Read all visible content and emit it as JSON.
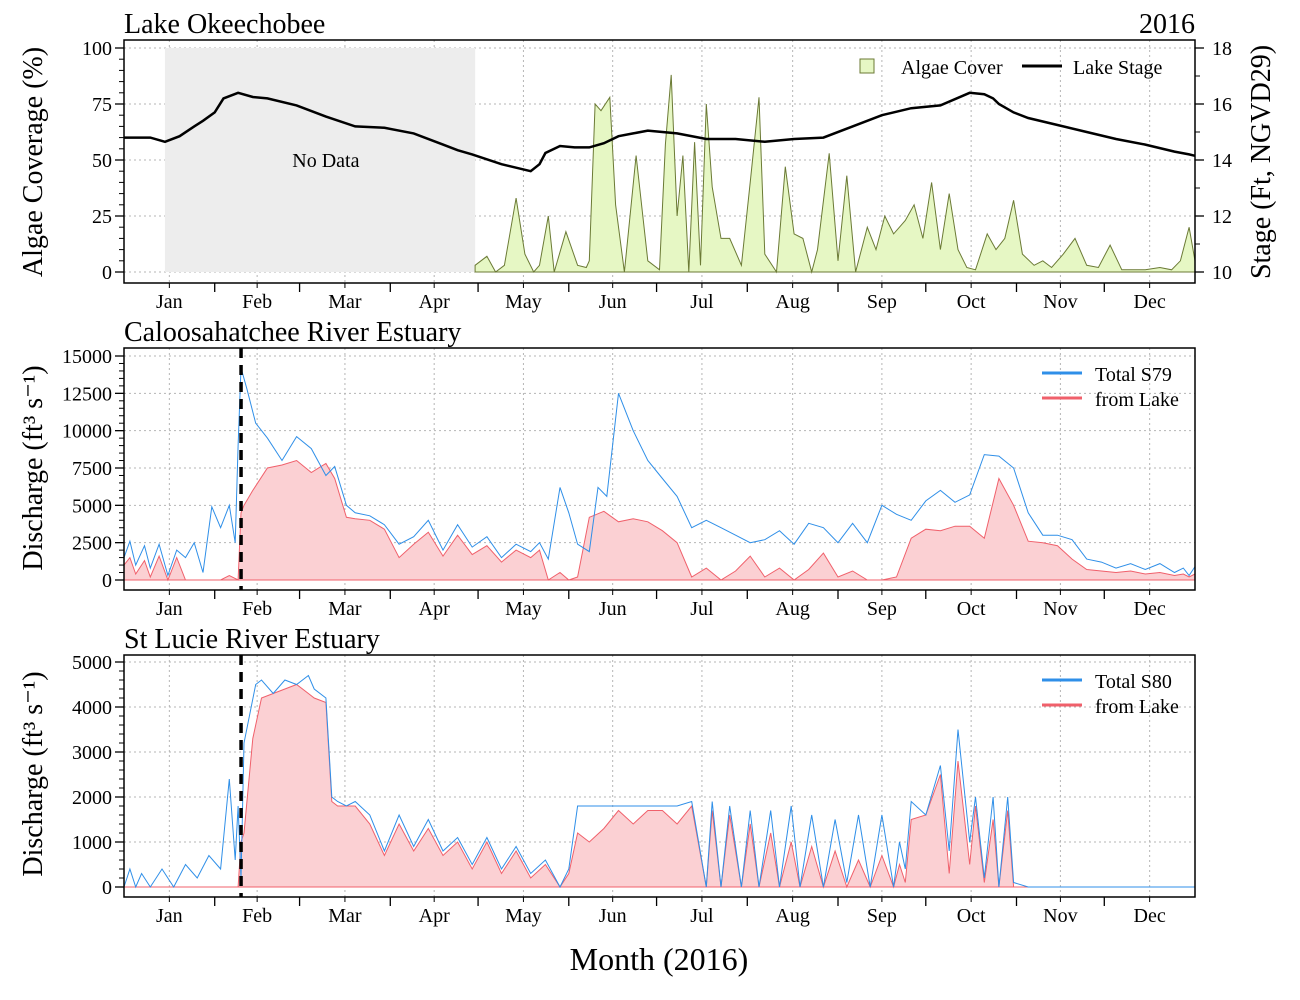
{
  "figure": {
    "xlabel": "Month (2016)",
    "months": [
      "Jan",
      "Feb",
      "Mar",
      "Apr",
      "May",
      "Jun",
      "Jul",
      "Aug",
      "Sep",
      "Oct",
      "Nov",
      "Dec"
    ]
  },
  "colors": {
    "algae_fill": "#e6f7c4",
    "algae_line": "#6b7a35",
    "stage": "#000000",
    "total": "#2f8fe8",
    "lake_line": "#f0606b",
    "lake_fill": "#fbd0d3",
    "nodata": "#ededed",
    "grid": "#b5b5b5"
  },
  "chart_data": [
    {
      "type": "area",
      "title": "Lake Okeechobee",
      "title_right": "2016",
      "ylabel": "Algae Coverage (%)",
      "y2label": "Stage (Ft, NGVD29)",
      "ylim": [
        0,
        100
      ],
      "y2lim": [
        10,
        18
      ],
      "yticks": [
        0,
        25,
        50,
        75,
        100
      ],
      "y2ticks": [
        10,
        12,
        14,
        16,
        18
      ],
      "xlim": [
        1,
        367
      ],
      "grid": true,
      "legend_position": "top-right",
      "annotation": "No Data",
      "no_data_range": [
        15,
        121
      ],
      "series": [
        {
          "name": "Algae Cover",
          "kind": "area",
          "x_day_of_year": [
            121,
            125,
            128,
            131,
            135,
            138,
            141,
            143,
            146,
            148,
            152,
            156,
            159,
            160,
            162,
            164,
            167,
            169,
            172,
            176,
            180,
            184,
            186,
            188,
            190,
            192,
            194,
            196,
            198,
            200,
            202,
            205,
            208,
            212,
            215,
            218,
            220,
            224,
            227,
            230,
            233,
            236,
            238,
            242,
            245,
            248,
            251,
            255,
            258,
            261,
            264,
            268,
            271,
            274,
            277,
            280,
            283,
            286,
            289,
            292,
            296,
            299,
            302,
            305,
            308,
            312,
            315,
            318,
            322,
            326,
            330,
            334,
            338,
            342,
            346,
            350,
            355,
            359,
            362,
            365,
            367
          ],
          "values": [
            3,
            7,
            0,
            3,
            33,
            8,
            0,
            3,
            25,
            0,
            18,
            3,
            2,
            5,
            75,
            72,
            78,
            30,
            0,
            52,
            5,
            1,
            57,
            88,
            25,
            52,
            0,
            58,
            3,
            75,
            38,
            15,
            15,
            3,
            40,
            78,
            8,
            0,
            47,
            17,
            15,
            0,
            10,
            53,
            5,
            43,
            0,
            20,
            10,
            25,
            17,
            23,
            30,
            15,
            40,
            10,
            35,
            10,
            2,
            1,
            17,
            10,
            15,
            32,
            8,
            3,
            5,
            2,
            8,
            15,
            3,
            2,
            12,
            1,
            1,
            1,
            2,
            1,
            5,
            20,
            5
          ]
        },
        {
          "name": "Lake Stage",
          "kind": "line",
          "x_day_of_year": [
            1,
            10,
            15,
            20,
            25,
            28,
            32,
            35,
            40,
            45,
            50,
            60,
            70,
            80,
            90,
            100,
            110,
            115,
            120,
            130,
            140,
            143,
            145,
            150,
            155,
            160,
            165,
            170,
            175,
            180,
            185,
            190,
            200,
            210,
            220,
            230,
            240,
            250,
            260,
            270,
            280,
            290,
            295,
            298,
            300,
            305,
            310,
            320,
            330,
            340,
            350,
            360,
            365,
            367
          ],
          "values": [
            14.8,
            14.8,
            14.65,
            14.85,
            15.2,
            15.4,
            15.7,
            16.2,
            16.4,
            16.25,
            16.2,
            15.95,
            15.55,
            15.2,
            15.15,
            14.95,
            14.55,
            14.35,
            14.2,
            13.85,
            13.6,
            13.85,
            14.25,
            14.5,
            14.45,
            14.45,
            14.6,
            14.85,
            14.95,
            15.05,
            15.0,
            14.95,
            14.75,
            14.75,
            14.65,
            14.75,
            14.8,
            15.2,
            15.6,
            15.85,
            15.95,
            16.4,
            16.35,
            16.2,
            16.0,
            15.7,
            15.5,
            15.25,
            15.0,
            14.75,
            14.55,
            14.3,
            14.2,
            14.15
          ]
        }
      ]
    },
    {
      "type": "area",
      "title": "Caloosahatchee River Estuary",
      "ylabel": "Discharge (ft³ s⁻¹)",
      "ylim": [
        0,
        15000
      ],
      "yticks": [
        0,
        2500,
        5000,
        7500,
        10000,
        12500,
        15000
      ],
      "xlim": [
        1,
        367
      ],
      "grid": true,
      "legend_position": "top-right",
      "vertical_dashed_line_day": 41,
      "series": [
        {
          "name": "Total S79",
          "kind": "line",
          "x_day_of_year": [
            1,
            3,
            5,
            8,
            10,
            13,
            16,
            19,
            22,
            25,
            28,
            31,
            34,
            37,
            39,
            40,
            41,
            43,
            46,
            50,
            55,
            60,
            65,
            70,
            73,
            77,
            80,
            85,
            90,
            95,
            100,
            105,
            110,
            115,
            120,
            125,
            130,
            135,
            140,
            143,
            146,
            150,
            153,
            156,
            160,
            163,
            166,
            170,
            175,
            180,
            185,
            190,
            195,
            200,
            205,
            210,
            215,
            220,
            225,
            230,
            235,
            240,
            245,
            250,
            255,
            260,
            265,
            270,
            275,
            280,
            285,
            290,
            295,
            300,
            305,
            310,
            315,
            320,
            325,
            330,
            335,
            340,
            345,
            350,
            355,
            360,
            363,
            365,
            367
          ],
          "values": [
            1500,
            2600,
            1000,
            2300,
            800,
            2400,
            300,
            2000,
            1500,
            2500,
            500,
            4900,
            3500,
            5000,
            2500,
            9000,
            14200,
            12800,
            10500,
            9500,
            8000,
            9600,
            8800,
            7000,
            7600,
            5000,
            4500,
            4300,
            3700,
            2400,
            2900,
            4000,
            2000,
            3700,
            2200,
            2900,
            1500,
            2400,
            1900,
            2500,
            1400,
            6200,
            4500,
            2400,
            1900,
            6200,
            5600,
            12500,
            10000,
            8000,
            6800,
            5600,
            3500,
            4000,
            3500,
            3000,
            2500,
            2700,
            3300,
            2400,
            3800,
            3500,
            2500,
            3800,
            2500,
            5000,
            4400,
            4000,
            5300,
            6000,
            5200,
            5700,
            8400,
            8300,
            7500,
            4500,
            3000,
            3000,
            2700,
            1400,
            1200,
            800,
            1100,
            700,
            1100,
            500,
            800,
            300,
            900
          ]
        },
        {
          "name": "from Lake",
          "kind": "area",
          "x_day_of_year": [
            1,
            3,
            5,
            8,
            10,
            13,
            16,
            19,
            22,
            25,
            28,
            31,
            34,
            37,
            40,
            41,
            42,
            45,
            50,
            55,
            60,
            65,
            70,
            73,
            77,
            80,
            85,
            90,
            95,
            100,
            105,
            110,
            115,
            120,
            125,
            130,
            135,
            140,
            143,
            146,
            150,
            153,
            156,
            160,
            165,
            170,
            175,
            180,
            185,
            190,
            195,
            200,
            205,
            210,
            215,
            220,
            225,
            230,
            235,
            240,
            245,
            250,
            255,
            260,
            265,
            270,
            275,
            280,
            285,
            290,
            295,
            300,
            305,
            310,
            315,
            320,
            325,
            330,
            335,
            340,
            345,
            350,
            355,
            360,
            363,
            365,
            367
          ],
          "values": [
            1000,
            1500,
            400,
            1300,
            200,
            1600,
            0,
            1500,
            0,
            0,
            0,
            0,
            0,
            300,
            0,
            4500,
            5000,
            6000,
            7500,
            7700,
            8000,
            7200,
            7800,
            6800,
            4200,
            4100,
            4000,
            3400,
            1500,
            2400,
            3200,
            1600,
            3000,
            1700,
            2300,
            1200,
            2000,
            1500,
            2000,
            0,
            500,
            0,
            200,
            4200,
            4600,
            3900,
            4100,
            3900,
            3300,
            2500,
            200,
            800,
            0,
            600,
            1600,
            200,
            800,
            0,
            700,
            1800,
            200,
            600,
            0,
            0,
            200,
            2800,
            3400,
            3300,
            3600,
            3600,
            2800,
            6800,
            5000,
            2600,
            2500,
            2300,
            1400,
            700,
            600,
            500,
            600,
            400,
            500,
            300,
            400,
            200,
            400
          ]
        }
      ]
    },
    {
      "type": "area",
      "title": "St Lucie River Estuary",
      "ylabel": "Discharge (ft³ s⁻¹)",
      "ylim": [
        0,
        5000
      ],
      "yticks": [
        0,
        1000,
        2000,
        3000,
        4000,
        5000
      ],
      "xlim": [
        1,
        367
      ],
      "grid": true,
      "legend_position": "top-right",
      "vertical_dashed_line_day": 41,
      "series": [
        {
          "name": "Total S80",
          "kind": "line",
          "x_day_of_year": [
            1,
            3,
            5,
            7,
            10,
            14,
            18,
            22,
            26,
            30,
            34,
            37,
            39,
            40,
            41,
            42,
            46,
            48,
            52,
            56,
            60,
            64,
            66,
            70,
            72,
            74,
            77,
            80,
            85,
            90,
            95,
            100,
            105,
            110,
            115,
            120,
            125,
            130,
            135,
            140,
            145,
            150,
            153,
            156,
            160,
            170,
            180,
            190,
            195,
            200,
            202,
            205,
            208,
            212,
            215,
            218,
            222,
            225,
            229,
            232,
            236,
            240,
            244,
            248,
            252,
            256,
            260,
            264,
            266,
            268,
            270,
            275,
            280,
            283,
            286,
            290,
            292,
            295,
            298,
            300,
            303,
            305,
            310,
            320,
            330,
            340,
            350,
            360,
            367
          ],
          "values": [
            0,
            400,
            0,
            300,
            0,
            400,
            0,
            500,
            200,
            700,
            400,
            2400,
            600,
            1800,
            200,
            3200,
            4500,
            4600,
            4300,
            4600,
            4500,
            4700,
            4400,
            4200,
            2000,
            1900,
            1800,
            1900,
            1600,
            800,
            1600,
            900,
            1500,
            800,
            1100,
            500,
            1100,
            400,
            900,
            300,
            600,
            0,
            400,
            1800,
            1800,
            1800,
            1800,
            1800,
            1900,
            0,
            1900,
            0,
            1800,
            0,
            1700,
            0,
            1700,
            0,
            1800,
            0,
            1600,
            0,
            1500,
            100,
            1600,
            0,
            1600,
            0,
            1000,
            400,
            1900,
            1600,
            2700,
            800,
            3500,
            1000,
            2000,
            200,
            2000,
            0,
            2000,
            100,
            0,
            0,
            0,
            0,
            0,
            0,
            0
          ]
        },
        {
          "name": "from Lake",
          "kind": "area",
          "x_day_of_year": [
            1,
            38,
            40,
            41,
            42,
            45,
            48,
            52,
            56,
            60,
            64,
            66,
            70,
            72,
            74,
            77,
            80,
            85,
            90,
            95,
            100,
            105,
            110,
            115,
            120,
            125,
            130,
            135,
            140,
            145,
            150,
            153,
            156,
            160,
            165,
            170,
            175,
            180,
            185,
            190,
            195,
            200,
            202,
            205,
            208,
            212,
            215,
            218,
            222,
            225,
            229,
            232,
            236,
            240,
            244,
            248,
            252,
            256,
            260,
            264,
            266,
            268,
            270,
            275,
            280,
            283,
            286,
            290,
            292,
            295,
            298,
            300,
            303,
            305,
            310,
            320,
            330,
            340,
            350,
            360,
            367
          ],
          "values": [
            0,
            0,
            0,
            1000,
            1200,
            3300,
            4200,
            4300,
            4400,
            4500,
            4300,
            4200,
            4100,
            1900,
            1800,
            1800,
            1800,
            1400,
            700,
            1400,
            800,
            1300,
            700,
            1000,
            400,
            1000,
            300,
            800,
            200,
            500,
            0,
            300,
            1200,
            1000,
            1300,
            1700,
            1400,
            1700,
            1700,
            1400,
            1800,
            0,
            1700,
            0,
            1600,
            0,
            1400,
            0,
            1200,
            0,
            1000,
            0,
            900,
            0,
            800,
            0,
            600,
            0,
            700,
            0,
            500,
            100,
            1500,
            1600,
            2500,
            300,
            2800,
            500,
            1800,
            100,
            1500,
            0,
            1700,
            0,
            0,
            0,
            0,
            0,
            0,
            0,
            0
          ]
        }
      ]
    }
  ]
}
